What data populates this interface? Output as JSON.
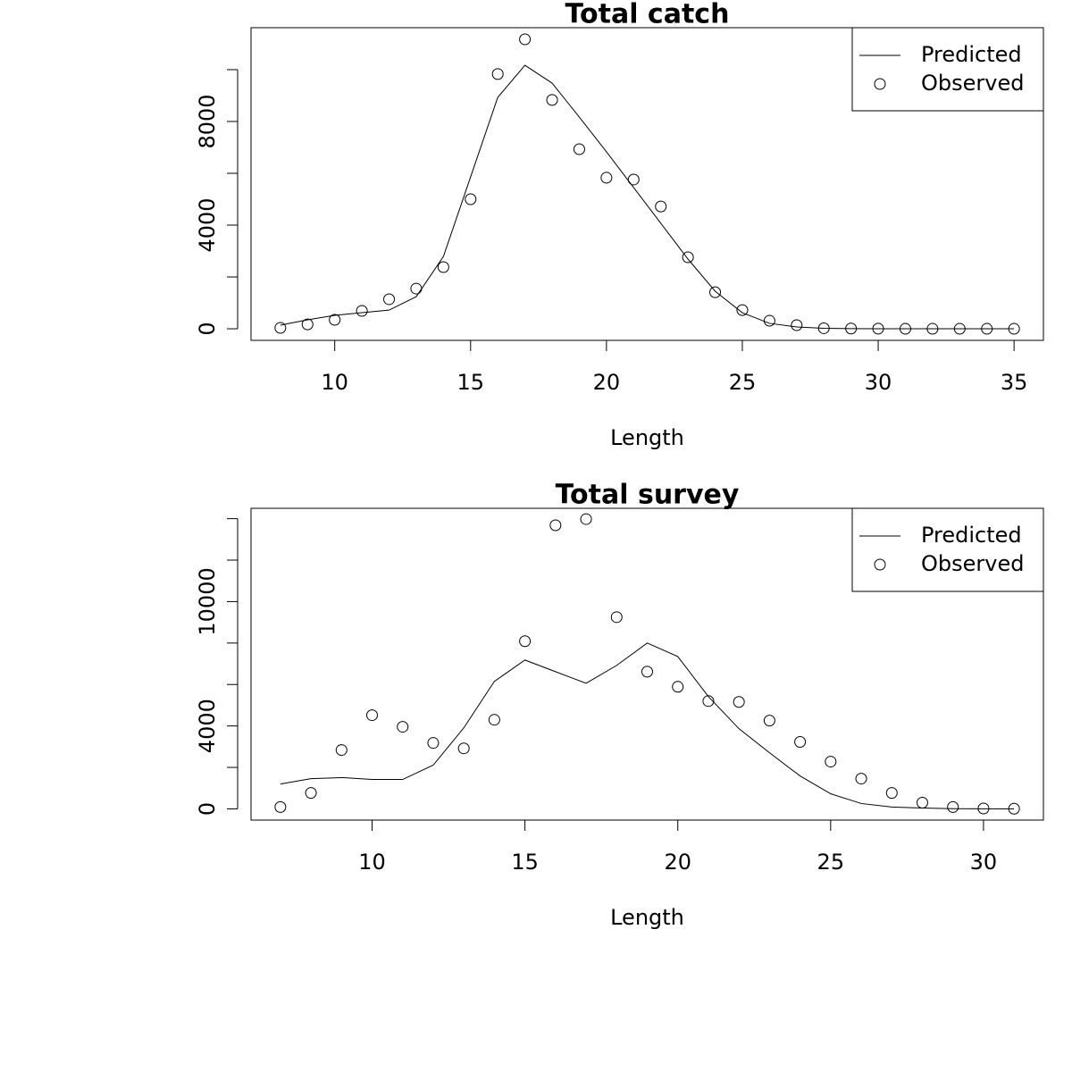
{
  "chart_data": [
    {
      "type": "line",
      "title": "Total catch",
      "xlabel": "Length",
      "x": [
        8,
        9,
        10,
        11,
        12,
        13,
        14,
        15,
        16,
        17,
        18,
        19,
        20,
        21,
        22,
        23,
        24,
        25,
        26,
        27,
        28,
        29,
        30,
        31,
        32,
        33,
        34,
        35
      ],
      "series": [
        {
          "name": "Predicted",
          "mode": "line",
          "color": "#000000",
          "values": [
            140,
            345,
            520,
            620,
            720,
            1240,
            2790,
            5860,
            8930,
            10170,
            9480,
            8170,
            6830,
            5450,
            4070,
            2690,
            1450,
            620,
            210,
            70,
            20,
            5,
            0,
            0,
            0,
            0,
            0,
            0
          ]
        },
        {
          "name": "Observed",
          "mode": "points",
          "color": "#000000",
          "values": [
            34,
            170,
            345,
            690,
            1140,
            1550,
            2380,
            5000,
            9830,
            11170,
            8830,
            6930,
            5830,
            5760,
            4720,
            2760,
            1410,
            720,
            310,
            140,
            20,
            10,
            5,
            0,
            0,
            0,
            0,
            0
          ]
        }
      ],
      "xlim": [
        6.92,
        36.08
      ],
      "ylim": [
        -447,
        11619
      ],
      "xticks": [
        10,
        15,
        20,
        25,
        30,
        35
      ],
      "yticks": [
        0,
        4000,
        8000
      ],
      "yticks_unlabeled": [
        2000,
        6000,
        10000
      ],
      "legend": "topright"
    },
    {
      "type": "line",
      "title": "Total survey",
      "xlabel": "Length",
      "x": [
        7,
        8,
        9,
        10,
        11,
        12,
        13,
        14,
        15,
        16,
        17,
        18,
        19,
        20,
        21,
        22,
        23,
        24,
        25,
        26,
        27,
        28,
        29,
        30,
        31
      ],
      "series": [
        {
          "name": "Predicted",
          "mode": "line",
          "color": "#000000",
          "values": [
            1200,
            1460,
            1510,
            1420,
            1420,
            2110,
            3910,
            6150,
            7180,
            6620,
            6060,
            6920,
            8000,
            7350,
            5420,
            3870,
            2710,
            1590,
            730,
            260,
            90,
            40,
            10,
            5,
            0
          ]
        },
        {
          "name": "Observed",
          "mode": "points",
          "color": "#000000",
          "values": [
            90,
            770,
            2840,
            4520,
            3960,
            3180,
            2920,
            4300,
            8090,
            13680,
            13980,
            9250,
            6620,
            5890,
            5200,
            5160,
            4260,
            3230,
            2280,
            1460,
            770,
            300,
            90,
            20,
            10
          ]
        }
      ],
      "xlim": [
        6.04,
        31.96
      ],
      "ylim": [
        -540,
        14500
      ],
      "xticks": [
        10,
        15,
        20,
        25,
        30
      ],
      "yticks": [
        0,
        4000,
        10000
      ],
      "yticks_unlabeled": [
        2000,
        6000,
        8000,
        12000,
        14000
      ],
      "legend": "topright"
    }
  ]
}
